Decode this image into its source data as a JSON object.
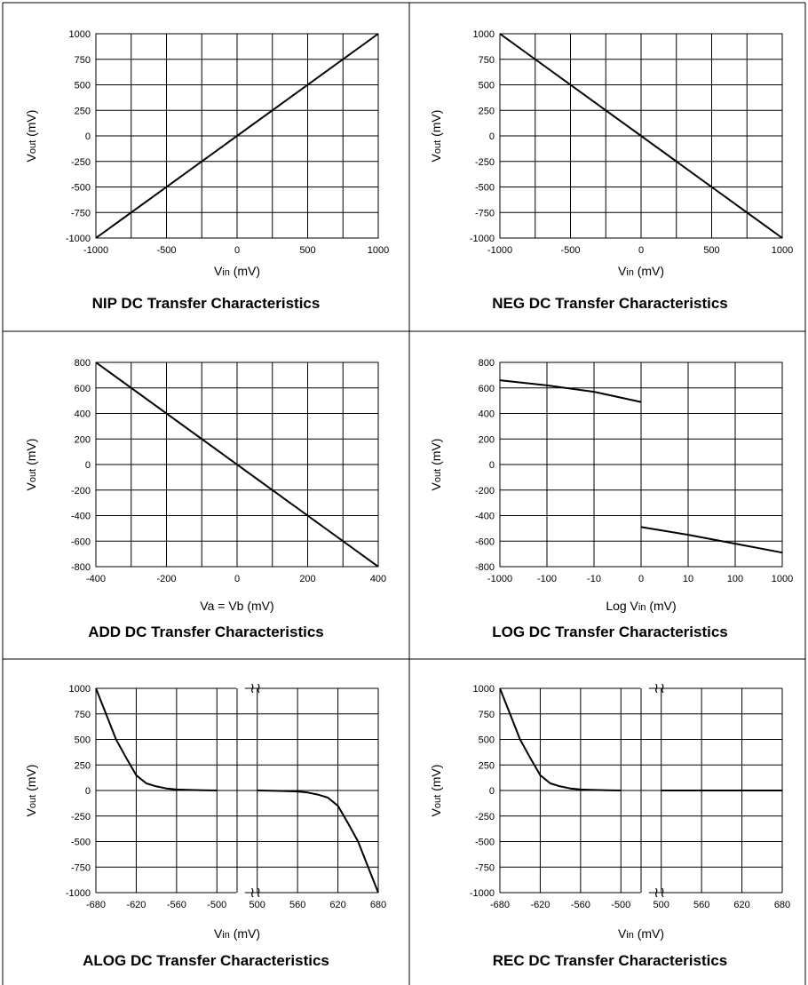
{
  "chart_data": [
    {
      "type": "line",
      "title": "NIP DC Transfer Characteristics",
      "xlabel": "Vin (mV)",
      "ylabel": "Vout (mV)",
      "xlim": [
        -1000,
        1000
      ],
      "ylim": [
        -1000,
        1000
      ],
      "x_ticks": [
        "-1000",
        "-500",
        "0",
        "500",
        "1000"
      ],
      "y_ticks": [
        "1000",
        "750",
        "500",
        "250",
        "0",
        "-250",
        "-750",
        "-1000"
      ],
      "y_ticks_full": [
        "1000",
        "750",
        "500",
        "250",
        "0",
        "-250",
        "-500",
        "-750",
        "-1000"
      ],
      "grid": true,
      "series": [
        {
          "x": [
            -1000,
            1000
          ],
          "y": [
            -1000,
            1000
          ]
        }
      ]
    },
    {
      "type": "line",
      "title": "NEG DC Transfer Characteristics",
      "xlabel": "Vin (mV)",
      "ylabel": "Vout (mV)",
      "xlim": [
        -1000,
        1000
      ],
      "ylim": [
        -1000,
        1000
      ],
      "x_ticks": [
        "-1000",
        "-500",
        "0",
        "500",
        "1000"
      ],
      "y_ticks_full": [
        "1000",
        "750",
        "500",
        "250",
        "0",
        "-250",
        "-500",
        "-750",
        "-1000"
      ],
      "grid": true,
      "series": [
        {
          "x": [
            -1000,
            1000
          ],
          "y": [
            1000,
            -1000
          ]
        }
      ]
    },
    {
      "type": "line",
      "title": "ADD DC Transfer Characteristics",
      "xlabel": "Va = Vb (mV)",
      "ylabel": "Vout (mV)",
      "xlim": [
        -400,
        400
      ],
      "ylim": [
        -800,
        800
      ],
      "x_ticks": [
        "-400",
        "-200",
        "0",
        "200",
        "400"
      ],
      "y_ticks_full": [
        "800",
        "600",
        "400",
        "200",
        "0",
        "-200",
        "-400",
        "-600",
        "-800"
      ],
      "grid": true,
      "series": [
        {
          "x": [
            -400,
            400
          ],
          "y": [
            800,
            -800
          ]
        }
      ]
    },
    {
      "type": "line",
      "title": "LOG DC Transfer Characteristics",
      "xlabel": "Log Vin (mV)",
      "ylabel": "Vout (mV)",
      "xlim": [
        -1000,
        1000
      ],
      "ylim": [
        -800,
        800
      ],
      "x_ticks": [
        "-1000",
        "-100",
        "-10",
        "0",
        "10",
        "100",
        "1000"
      ],
      "y_ticks_full": [
        "800",
        "600",
        "400",
        "200",
        "0",
        "-200",
        "-400",
        "-600",
        "-800"
      ],
      "grid": true,
      "series": [
        {
          "x": [
            -1000,
            -100,
            -10,
            -1
          ],
          "y": [
            660,
            620,
            570,
            490
          ]
        },
        {
          "x": [
            1,
            10,
            100,
            1000
          ],
          "y": [
            -490,
            -550,
            -620,
            -690
          ]
        }
      ]
    },
    {
      "type": "line",
      "title": "ALOG DC Transfer Characteristics",
      "xlabel": "Vin (mV)",
      "ylabel": "Vout (mV)",
      "ylim": [
        -1000,
        1000
      ],
      "x_ticks": [
        "-680",
        "-620",
        "-560",
        "-500",
        "500",
        "560",
        "620",
        "680"
      ],
      "y_ticks_full": [
        "1000",
        "750",
        "500",
        "250",
        "0",
        "-250",
        "-500",
        "-750",
        "-1000"
      ],
      "grid": true,
      "axis_break": true,
      "series": [
        {
          "x": [
            -680,
            -665,
            -650,
            -635,
            -620,
            -605,
            -590,
            -575,
            -560,
            -540,
            -520,
            -500
          ],
          "y": [
            1000,
            750,
            500,
            320,
            150,
            70,
            40,
            20,
            10,
            5,
            2,
            0
          ]
        },
        {
          "x": [
            500,
            520,
            540,
            560,
            575,
            590,
            605,
            620,
            635,
            650,
            665,
            680
          ],
          "y": [
            0,
            -2,
            -5,
            -10,
            -20,
            -40,
            -70,
            -150,
            -320,
            -500,
            -750,
            -1000
          ]
        }
      ]
    },
    {
      "type": "line",
      "title": "REC DC Transfer Characteristics",
      "xlabel": "Vin (mV)",
      "ylabel": "Vout (mV)",
      "ylim": [
        -1000,
        1000
      ],
      "x_ticks": [
        "-680",
        "-620",
        "-560",
        "-500",
        "500",
        "560",
        "620",
        "680"
      ],
      "y_ticks_full": [
        "1000",
        "750",
        "500",
        "250",
        "0",
        "-250",
        "-500",
        "-750",
        "-1000"
      ],
      "grid": true,
      "axis_break": true,
      "series": [
        {
          "x": [
            -680,
            -665,
            -650,
            -635,
            -620,
            -605,
            -590,
            -575,
            -560,
            -540,
            -520,
            -500
          ],
          "y": [
            1000,
            750,
            500,
            320,
            150,
            70,
            40,
            20,
            10,
            5,
            2,
            0
          ]
        },
        {
          "x": [
            500,
            680
          ],
          "y": [
            0,
            0
          ]
        }
      ]
    }
  ]
}
